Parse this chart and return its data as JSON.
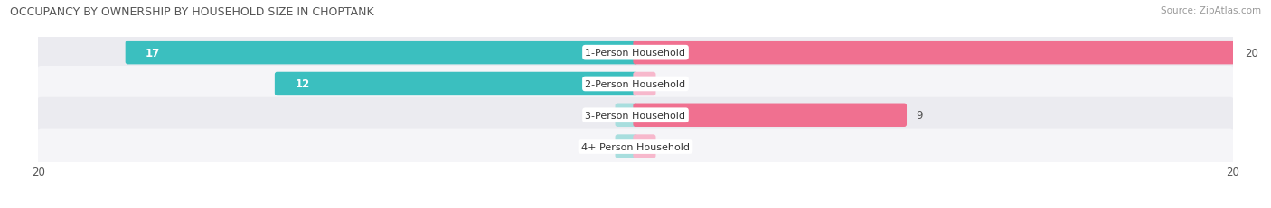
{
  "title": "OCCUPANCY BY OWNERSHIP BY HOUSEHOLD SIZE IN CHOPTANK",
  "source": "Source: ZipAtlas.com",
  "categories": [
    "1-Person Household",
    "2-Person Household",
    "3-Person Household",
    "4+ Person Household"
  ],
  "owner_values": [
    17,
    12,
    0,
    0
  ],
  "renter_values": [
    20,
    0,
    9,
    0
  ],
  "max_val": 20,
  "owner_color": "#3bbfbf",
  "owner_color_light": "#a8dede",
  "renter_color": "#f07090",
  "renter_color_light": "#f7b8cc",
  "row_bg_color": "#ebebf0",
  "row_alt_bg_color": "#f5f5f8",
  "title_fontsize": 9,
  "source_fontsize": 7.5,
  "bar_label_fontsize": 8.5,
  "axis_label_fontsize": 8.5,
  "legend_fontsize": 9,
  "category_fontsize": 8
}
